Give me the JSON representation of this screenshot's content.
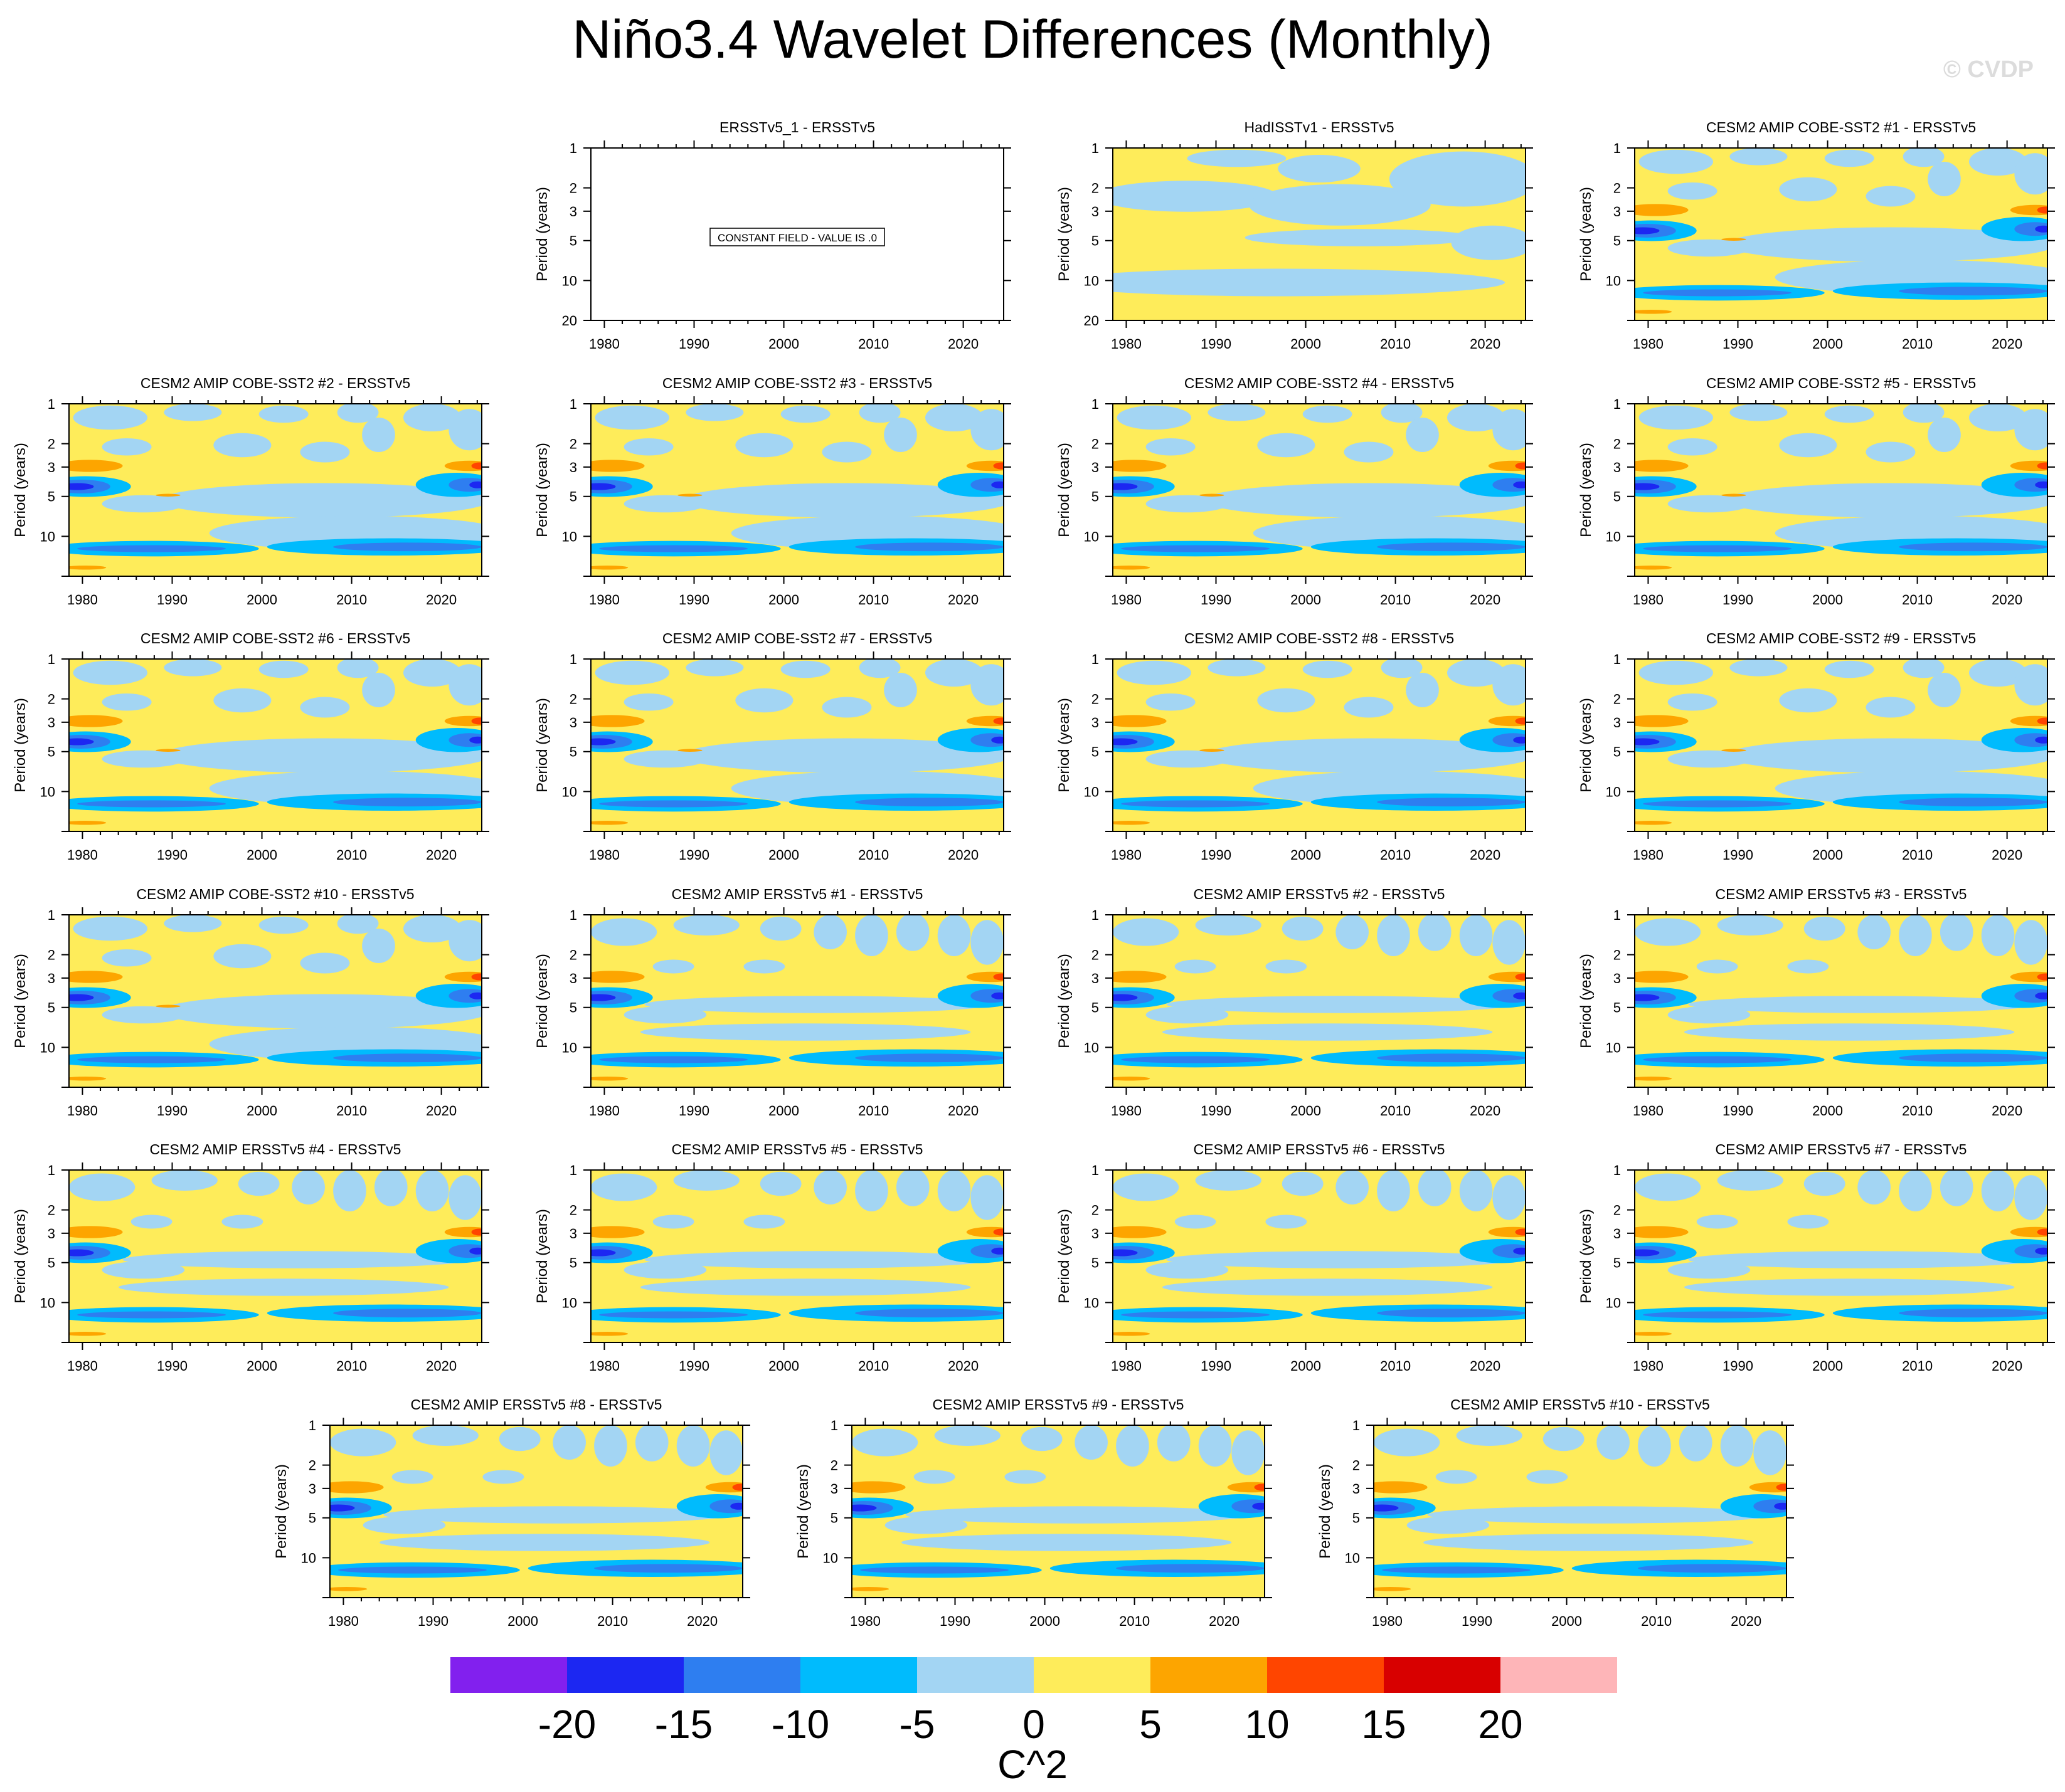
{
  "title": "Niño3.4 Wavelet Differences (Monthly)",
  "credit": "© CVDP",
  "colorbar": {
    "units": "C^2",
    "colors": [
      "#8220EE",
      "#1C27F2",
      "#2E7EF0",
      "#00BBFD",
      "#A3D5F3",
      "#FEEC5A",
      "#FDA500",
      "#FF4500",
      "#D80000",
      "#FEB5B8"
    ],
    "labels": [
      "-20",
      "-15",
      "-10",
      "-5",
      "0",
      "5",
      "10",
      "15",
      "20"
    ]
  },
  "chart_data": {
    "type": "heatmap",
    "ylabel": "Period (years)",
    "yticks": [
      1,
      2,
      3,
      5,
      10,
      20
    ],
    "xticks": [
      1980,
      1990,
      2000,
      2010,
      2020
    ],
    "constant_note": "CONSTANT FIELD - VALUE IS .0",
    "panels": [
      {
        "title": "ERSSTv5_1 - ERSSTv5",
        "pattern": "constant"
      },
      {
        "title": "HadISSTv1 - ERSSTv5",
        "pattern": "hadisst"
      },
      {
        "title": "CESM2 AMIP COBE-SST2 #1 - ERSSTv5",
        "pattern": "cobe"
      },
      {
        "title": "CESM2 AMIP COBE-SST2 #2 - ERSSTv5",
        "pattern": "cobe"
      },
      {
        "title": "CESM2 AMIP COBE-SST2 #3 - ERSSTv5",
        "pattern": "cobe"
      },
      {
        "title": "CESM2 AMIP COBE-SST2 #4 - ERSSTv5",
        "pattern": "cobe"
      },
      {
        "title": "CESM2 AMIP COBE-SST2 #5 - ERSSTv5",
        "pattern": "cobe"
      },
      {
        "title": "CESM2 AMIP COBE-SST2 #6 - ERSSTv5",
        "pattern": "cobe"
      },
      {
        "title": "CESM2 AMIP COBE-SST2 #7 - ERSSTv5",
        "pattern": "cobe"
      },
      {
        "title": "CESM2 AMIP COBE-SST2 #8 - ERSSTv5",
        "pattern": "cobe"
      },
      {
        "title": "CESM2 AMIP COBE-SST2 #9 - ERSSTv5",
        "pattern": "cobe"
      },
      {
        "title": "CESM2 AMIP COBE-SST2 #10 - ERSSTv5",
        "pattern": "cobe"
      },
      {
        "title": "CESM2 AMIP ERSSTv5 #1 - ERSSTv5",
        "pattern": "ersst"
      },
      {
        "title": "CESM2 AMIP ERSSTv5 #2 - ERSSTv5",
        "pattern": "ersst"
      },
      {
        "title": "CESM2 AMIP ERSSTv5 #3 - ERSSTv5",
        "pattern": "ersst"
      },
      {
        "title": "CESM2 AMIP ERSSTv5 #4 - ERSSTv5",
        "pattern": "ersst"
      },
      {
        "title": "CESM2 AMIP ERSSTv5 #5 - ERSSTv5",
        "pattern": "ersst"
      },
      {
        "title": "CESM2 AMIP ERSSTv5 #6 - ERSSTv5",
        "pattern": "ersst"
      },
      {
        "title": "CESM2 AMIP ERSSTv5 #7 - ERSSTv5",
        "pattern": "ersst"
      },
      {
        "title": "CESM2 AMIP ERSSTv5 #8 - ERSSTv5",
        "pattern": "ersst"
      },
      {
        "title": "CESM2 AMIP ERSSTv5 #9 - ERSSTv5",
        "pattern": "ersst"
      },
      {
        "title": "CESM2 AMIP ERSSTv5 #10 - ERSSTv5",
        "pattern": "ersst"
      }
    ]
  }
}
